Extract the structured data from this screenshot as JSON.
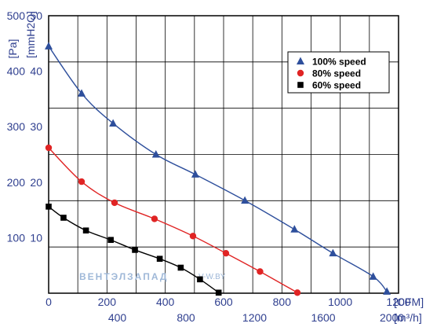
{
  "chart_data": {
    "type": "line",
    "y_axis_pa": {
      "label": "[Pa]",
      "ticks": [
        100,
        200,
        300,
        400,
        500
      ],
      "ylim": [
        0,
        500
      ]
    },
    "y_axis_mmh2o": {
      "label": "[mmH2O]",
      "ticks": [
        10,
        20,
        30,
        40,
        50
      ]
    },
    "x_axis_cfm": {
      "label": "[CFM]",
      "ticks": [
        0,
        200,
        400,
        600,
        800,
        1000,
        1200
      ],
      "xlim": [
        0,
        1200
      ]
    },
    "x_axis_m3h": {
      "label": "[m³/h]",
      "ticks": [
        400,
        800,
        1200,
        1600,
        2000
      ]
    },
    "grid": true,
    "legend_position": "top-right",
    "series": [
      {
        "name": "100%  speed",
        "color": "#2e4f9c",
        "marker": "triangle",
        "x": [
          0,
          113,
          221,
          368,
          503,
          673,
          843,
          975,
          1113,
          1160
        ],
        "y": [
          445,
          360,
          306,
          250,
          214,
          167,
          115,
          72,
          30,
          3
        ]
      },
      {
        "name": "80%  speed",
        "color": "#e02424",
        "marker": "circle",
        "x": [
          0,
          113,
          226,
          363,
          495,
          608,
          725,
          853
        ],
        "y": [
          262,
          201,
          163,
          134,
          103,
          72,
          39,
          1
        ]
      },
      {
        "name": "60%  speed",
        "color": "#000000",
        "marker": "square",
        "x": [
          0,
          51,
          128,
          213,
          296,
          381,
          453,
          519,
          583
        ],
        "y": [
          156,
          136,
          113,
          96,
          78,
          62,
          46,
          25,
          1
        ]
      }
    ]
  },
  "watermark": {
    "brand": "ВЕНТЭЛЗАПАД",
    "site": "V-W.BY"
  }
}
